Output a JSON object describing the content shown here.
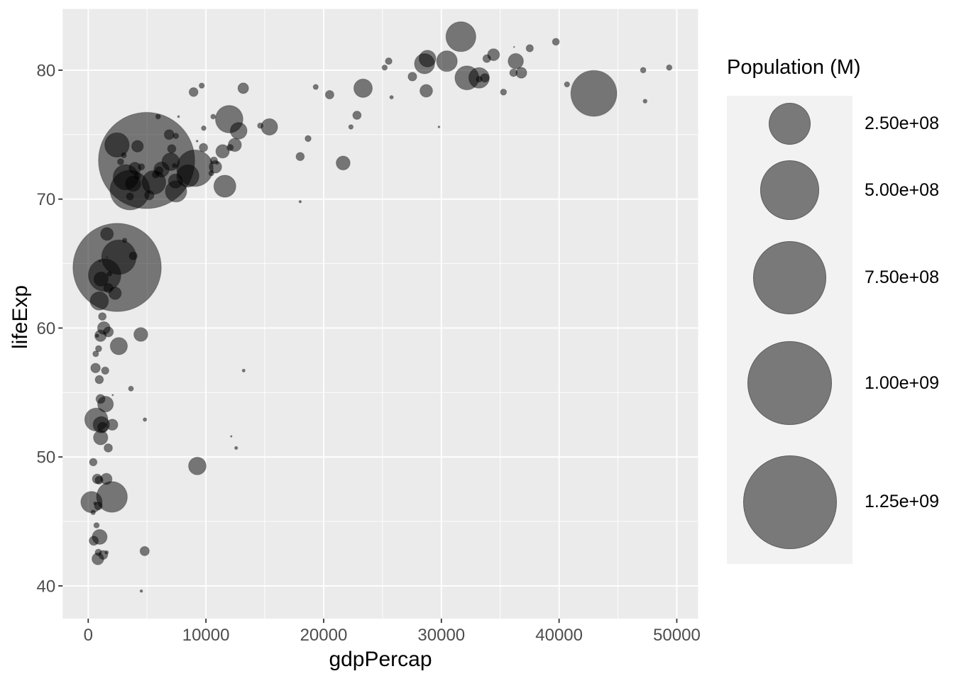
{
  "chart_data": {
    "type": "scatter",
    "subtype": "bubble",
    "title": "",
    "xlabel": "gdpPercap",
    "ylabel": "lifeExp",
    "x_tick_values": [
      0,
      10000,
      20000,
      30000,
      40000,
      50000
    ],
    "x_tick_labels": [
      "0",
      "10000",
      "20000",
      "30000",
      "40000",
      "50000"
    ],
    "y_tick_values": [
      40,
      50,
      60,
      70,
      80
    ],
    "y_tick_labels": [
      "40",
      "50",
      "60",
      "70",
      "80"
    ],
    "x_minor_ticks": [
      5000,
      15000,
      25000,
      35000,
      45000
    ],
    "y_minor_ticks": [
      45,
      55,
      65,
      75
    ],
    "xlim": [
      -2176,
      51811
    ],
    "ylim": [
      37.46,
      84.75
    ],
    "grid": {
      "major": true,
      "minor": true
    },
    "legend_position": "right",
    "legend": {
      "title": "Population (M)",
      "entries": [
        {
          "label": "2.50e+08",
          "value": 250000000
        },
        {
          "label": "5.00e+08",
          "value": 500000000
        },
        {
          "label": "7.50e+08",
          "value": 750000000
        },
        {
          "label": "1.00e+09",
          "value": 1000000000
        },
        {
          "label": "1.25e+09",
          "value": 1250000000
        }
      ]
    },
    "size_domain": [
      199579,
      1318683096
    ],
    "colors": {
      "page_background": "#FFFFFF",
      "panel_background": "#EBEBEB",
      "gridline": "#FFFFFF",
      "bubble_fill": "#000000",
      "bubble_fill_opacity": 0.5,
      "bubble_stroke_opacity": 0.22,
      "legend_key_background": "#F2F2F2",
      "axis_text": "#4D4D4D",
      "axis_title": "#000000",
      "tick_mark": "#333333"
    },
    "points_format": [
      "gdpPercap",
      "lifeExp",
      "population"
    ],
    "points": [
      [
        974.6,
        43.8,
        31889923
      ],
      [
        5937,
        76.4,
        3600523
      ],
      [
        6223.4,
        72.3,
        33333216
      ],
      [
        4797.2,
        42.7,
        12420476
      ],
      [
        12779.4,
        75.3,
        40301927
      ],
      [
        34435.4,
        81.2,
        20434176
      ],
      [
        36126.5,
        79.8,
        8199783
      ],
      [
        29796,
        75.6,
        708573
      ],
      [
        1391.3,
        64.1,
        150448339
      ],
      [
        33692.6,
        79.4,
        10392226
      ],
      [
        1441.3,
        56.7,
        8078314
      ],
      [
        3822.1,
        65.6,
        9119152
      ],
      [
        7446.3,
        74.9,
        4552198
      ],
      [
        12569.9,
        50.7,
        1639131
      ],
      [
        9065.8,
        72.4,
        190010647
      ],
      [
        10680.8,
        73,
        7322858
      ],
      [
        1217,
        52.3,
        14326203
      ],
      [
        430.1,
        49.6,
        8390505
      ],
      [
        1713.8,
        59.7,
        14131858
      ],
      [
        2042.1,
        52.5,
        17696293
      ],
      [
        36319.2,
        80.7,
        33390141
      ],
      [
        706,
        44.7,
        4369038
      ],
      [
        1704.1,
        50.7,
        10238807
      ],
      [
        13171.6,
        78.6,
        16284741
      ],
      [
        4959.1,
        73,
        1318683096
      ],
      [
        7006.6,
        72.9,
        44227550
      ],
      [
        986.1,
        65.2,
        710960
      ],
      [
        277.6,
        46.5,
        64606759
      ],
      [
        3632.6,
        55.3,
        3800610
      ],
      [
        9645.1,
        78.8,
        4133884
      ],
      [
        1544.8,
        48.3,
        18013409
      ],
      [
        14619.2,
        75.7,
        4493312
      ],
      [
        8948.1,
        78.3,
        11416987
      ],
      [
        22833.3,
        76.5,
        10228744
      ],
      [
        35278.4,
        78.3,
        5468120
      ],
      [
        2082.5,
        54.8,
        496374
      ],
      [
        6025.4,
        72.2,
        9319622
      ],
      [
        6873.3,
        75,
        13755680
      ],
      [
        5581.2,
        71.3,
        80264543
      ],
      [
        5728.4,
        71.9,
        6939688
      ],
      [
        12154.1,
        51.6,
        551201
      ],
      [
        641.4,
        58,
        4906585
      ],
      [
        690.8,
        52.9,
        76511887
      ],
      [
        33207.1,
        79.3,
        5238460
      ],
      [
        30470,
        80.7,
        61083916
      ],
      [
        13206.5,
        56.7,
        1454867
      ],
      [
        752.7,
        59.4,
        1688359
      ],
      [
        32170.4,
        79.4,
        82400996
      ],
      [
        1327.6,
        60,
        22873338
      ],
      [
        27538.4,
        79.5,
        10706290
      ],
      [
        5186.1,
        70.3,
        12572928
      ],
      [
        942.7,
        56,
        9947814
      ],
      [
        579.2,
        46.4,
        1472041
      ],
      [
        1201.6,
        60.9,
        8502814
      ],
      [
        3548.3,
        70.2,
        7483763
      ],
      [
        39725,
        82.2,
        6980412
      ],
      [
        18008.9,
        73.3,
        9956108
      ],
      [
        36180.8,
        81.8,
        301931
      ],
      [
        2452.2,
        64.7,
        1110396331
      ],
      [
        3540.7,
        70.7,
        223547000
      ],
      [
        11605.7,
        71,
        69453570
      ],
      [
        4471.1,
        59.5,
        27499638
      ],
      [
        40676,
        78.9,
        4109086
      ],
      [
        25523.3,
        80.7,
        6426679
      ],
      [
        28569.7,
        80.5,
        58147733
      ],
      [
        7320.9,
        72.6,
        2780132
      ],
      [
        31656.1,
        82.6,
        127467972
      ],
      [
        4519.5,
        72.5,
        6053193
      ],
      [
        1463.2,
        54.1,
        35610177
      ],
      [
        1593.1,
        67.3,
        23301725
      ],
      [
        23348.1,
        78.6,
        49044790
      ],
      [
        47307,
        77.6,
        2505559
      ],
      [
        10461.1,
        72,
        3921278
      ],
      [
        1569.3,
        42.6,
        2012649
      ],
      [
        414.5,
        45.7,
        3193942
      ],
      [
        12057.5,
        74,
        6036914
      ],
      [
        1044.8,
        59.4,
        19167654
      ],
      [
        759.3,
        48.3,
        13327079
      ],
      [
        12451.7,
        74.2,
        24821286
      ],
      [
        1042.6,
        54.5,
        12031795
      ],
      [
        1803.2,
        64.2,
        3270065
      ],
      [
        10957,
        72.8,
        1250882
      ],
      [
        11977.6,
        76.2,
        108700891
      ],
      [
        3095.8,
        66.8,
        2874127
      ],
      [
        9253.9,
        74.5,
        684736
      ],
      [
        3820.2,
        71.2,
        33757175
      ],
      [
        823.7,
        42.1,
        19951656
      ],
      [
        944,
        62.1,
        47761980
      ],
      [
        4811.1,
        52.9,
        2055080
      ],
      [
        1091.4,
        63.8,
        28901790
      ],
      [
        36797.9,
        79.8,
        16570613
      ],
      [
        25185,
        80.2,
        4115771
      ],
      [
        2749.3,
        72.9,
        5675356
      ],
      [
        619.7,
        56.9,
        12894865
      ],
      [
        2014,
        46.9,
        135031164
      ],
      [
        49357.2,
        80.2,
        4627926
      ],
      [
        22316.2,
        75.6,
        3204897
      ],
      [
        2606,
        65.5,
        169270617
      ],
      [
        9809.2,
        75.5,
        3242173
      ],
      [
        4172.8,
        71.8,
        6667147
      ],
      [
        7408.9,
        71.4,
        28674757
      ],
      [
        3190.5,
        71.7,
        91077287
      ],
      [
        15389.9,
        75.6,
        38518241
      ],
      [
        20509.6,
        78.1,
        10642836
      ],
      [
        19328.7,
        78.7,
        3942491
      ],
      [
        7670.1,
        76.4,
        798094
      ],
      [
        10808.5,
        72.5,
        22276056
      ],
      [
        863.1,
        46.2,
        8860588
      ],
      [
        1598.4,
        65.5,
        199579
      ],
      [
        21654.8,
        72.8,
        27601038
      ],
      [
        1712.5,
        63.1,
        12267493
      ],
      [
        9786.5,
        74,
        10150265
      ],
      [
        862.5,
        42.6,
        6144562
      ],
      [
        47143.2,
        80,
        4553009
      ],
      [
        18678.3,
        74.7,
        5447502
      ],
      [
        25768.3,
        77.9,
        2009245
      ],
      [
        926.1,
        48.2,
        9118773
      ],
      [
        9269.7,
        49.3,
        43997828
      ],
      [
        28821.1,
        80.9,
        40448191
      ],
      [
        3970.1,
        72.4,
        20378239
      ],
      [
        2602.4,
        58.6,
        42292929
      ],
      [
        4513.5,
        39.6,
        1133066
      ],
      [
        33859.7,
        80.9,
        9031088
      ],
      [
        37506.4,
        81.7,
        7554661
      ],
      [
        4184.6,
        74.1,
        19314747
      ],
      [
        28718.3,
        78.4,
        23174294
      ],
      [
        1107.5,
        52.5,
        38139640
      ],
      [
        7458.4,
        70.6,
        65068149
      ],
      [
        883,
        58.4,
        5701579
      ],
      [
        18008.5,
        69.8,
        1056608
      ],
      [
        7092.9,
        73.9,
        10276158
      ],
      [
        8458.3,
        71.8,
        71158647
      ],
      [
        1056.4,
        51.5,
        29170398
      ],
      [
        33203.3,
        79.4,
        60776238
      ],
      [
        42951.7,
        78.2,
        301139947
      ],
      [
        10611.5,
        76.4,
        3447496
      ],
      [
        11415.8,
        73.7,
        26084662
      ],
      [
        2441.6,
        74.2,
        85262356
      ],
      [
        3025.4,
        73.4,
        4018332
      ],
      [
        2281,
        62.7,
        22211743
      ],
      [
        1271.2,
        42.4,
        11746035
      ],
      [
        469.7,
        43.5,
        12311143
      ]
    ]
  }
}
